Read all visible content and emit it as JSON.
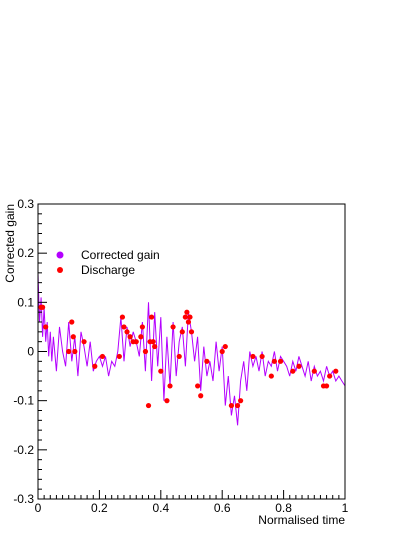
{
  "chart_data": {
    "type": "scatter",
    "title": "",
    "xlabel": "Normalised time",
    "ylabel": "Corrected gain",
    "xlim": [
      0,
      1
    ],
    "ylim": [
      -0.3,
      0.3
    ],
    "x_ticks": [
      0,
      0.2,
      0.4,
      0.6,
      0.8,
      1
    ],
    "x_tick_labels": [
      "0",
      "0.2",
      "0.4",
      "0.6",
      "0.8",
      "1"
    ],
    "y_ticks": [
      -0.3,
      -0.2,
      -0.1,
      0,
      0.1,
      0.2,
      0.3
    ],
    "y_tick_labels": [
      "-0.3",
      "-0.2",
      "-0.1",
      "0",
      "0.1",
      "0.2",
      "0.3"
    ],
    "grid": false,
    "legend_position": "upper-left",
    "series": [
      {
        "name": "Corrected gain",
        "kind": "line",
        "color": "#b400ff",
        "x": [
          0.0,
          0.005,
          0.01,
          0.015,
          0.02,
          0.025,
          0.03,
          0.035,
          0.04,
          0.045,
          0.05,
          0.06,
          0.07,
          0.08,
          0.09,
          0.1,
          0.11,
          0.12,
          0.13,
          0.14,
          0.15,
          0.16,
          0.17,
          0.18,
          0.19,
          0.2,
          0.21,
          0.22,
          0.23,
          0.24,
          0.25,
          0.26,
          0.27,
          0.28,
          0.29,
          0.3,
          0.31,
          0.32,
          0.33,
          0.34,
          0.35,
          0.36,
          0.37,
          0.38,
          0.39,
          0.4,
          0.41,
          0.42,
          0.43,
          0.44,
          0.45,
          0.46,
          0.47,
          0.48,
          0.49,
          0.5,
          0.51,
          0.52,
          0.53,
          0.54,
          0.55,
          0.56,
          0.57,
          0.58,
          0.59,
          0.6,
          0.61,
          0.62,
          0.63,
          0.64,
          0.65,
          0.66,
          0.67,
          0.68,
          0.69,
          0.7,
          0.71,
          0.72,
          0.73,
          0.74,
          0.75,
          0.76,
          0.77,
          0.78,
          0.79,
          0.8,
          0.81,
          0.82,
          0.83,
          0.84,
          0.85,
          0.86,
          0.87,
          0.88,
          0.89,
          0.9,
          0.91,
          0.92,
          0.93,
          0.94,
          0.95,
          0.96,
          0.97,
          0.98,
          0.99,
          1.0
        ],
        "values": [
          0.16,
          0.06,
          0.11,
          0.03,
          0.09,
          0.02,
          0.06,
          -0.01,
          0.04,
          -0.02,
          0.03,
          -0.04,
          0.05,
          0.0,
          -0.03,
          0.06,
          -0.02,
          0.03,
          -0.05,
          0.04,
          0.01,
          -0.03,
          0.02,
          -0.04,
          -0.02,
          -0.01,
          -0.03,
          -0.01,
          -0.05,
          -0.02,
          -0.03,
          0.0,
          0.07,
          -0.02,
          0.05,
          0.01,
          0.04,
          0.02,
          -0.01,
          0.06,
          -0.04,
          0.1,
          -0.06,
          0.08,
          -0.03,
          0.07,
          -0.1,
          0.03,
          -0.07,
          0.06,
          -0.05,
          0.02,
          0.05,
          -0.03,
          0.08,
          0.04,
          -0.02,
          0.03,
          -0.08,
          0.01,
          -0.05,
          -0.02,
          -0.06,
          0.02,
          -0.04,
          0.01,
          -0.11,
          -0.05,
          -0.13,
          -0.09,
          -0.15,
          -0.06,
          -0.02,
          -0.08,
          0.0,
          -0.03,
          -0.01,
          -0.04,
          0.0,
          -0.05,
          -0.02,
          -0.03,
          0.0,
          -0.04,
          -0.01,
          -0.02,
          -0.03,
          -0.05,
          -0.02,
          -0.04,
          -0.01,
          -0.03,
          -0.05,
          -0.02,
          -0.06,
          -0.03,
          -0.05,
          -0.04,
          -0.06,
          -0.03,
          -0.05,
          -0.04,
          -0.06,
          -0.05,
          -0.06,
          -0.07
        ]
      },
      {
        "name": "Discharge",
        "kind": "points",
        "color": "#ff0000",
        "x": [
          0.01,
          0.015,
          0.025,
          0.1,
          0.11,
          0.115,
          0.12,
          0.15,
          0.185,
          0.21,
          0.265,
          0.275,
          0.28,
          0.29,
          0.3,
          0.31,
          0.32,
          0.335,
          0.34,
          0.35,
          0.36,
          0.365,
          0.37,
          0.375,
          0.38,
          0.4,
          0.42,
          0.43,
          0.44,
          0.46,
          0.47,
          0.48,
          0.485,
          0.49,
          0.495,
          0.5,
          0.52,
          0.53,
          0.55,
          0.6,
          0.61,
          0.63,
          0.65,
          0.66,
          0.7,
          0.73,
          0.76,
          0.77,
          0.79,
          0.83,
          0.85,
          0.9,
          0.93,
          0.94,
          0.95,
          0.97
        ],
        "values": [
          0.09,
          0.09,
          0.05,
          0.0,
          0.06,
          0.03,
          0.0,
          0.02,
          -0.03,
          -0.01,
          -0.01,
          0.07,
          0.05,
          0.04,
          0.03,
          0.02,
          0.02,
          0.03,
          0.05,
          0.0,
          -0.11,
          0.02,
          0.07,
          0.02,
          0.01,
          -0.04,
          -0.1,
          -0.07,
          0.05,
          -0.01,
          0.04,
          0.07,
          0.08,
          0.06,
          0.07,
          0.04,
          -0.07,
          -0.09,
          -0.02,
          0.0,
          0.01,
          -0.11,
          -0.11,
          -0.1,
          -0.01,
          -0.01,
          -0.05,
          -0.02,
          -0.02,
          -0.04,
          -0.03,
          -0.04,
          -0.07,
          -0.07,
          -0.05,
          -0.04
        ]
      }
    ]
  }
}
